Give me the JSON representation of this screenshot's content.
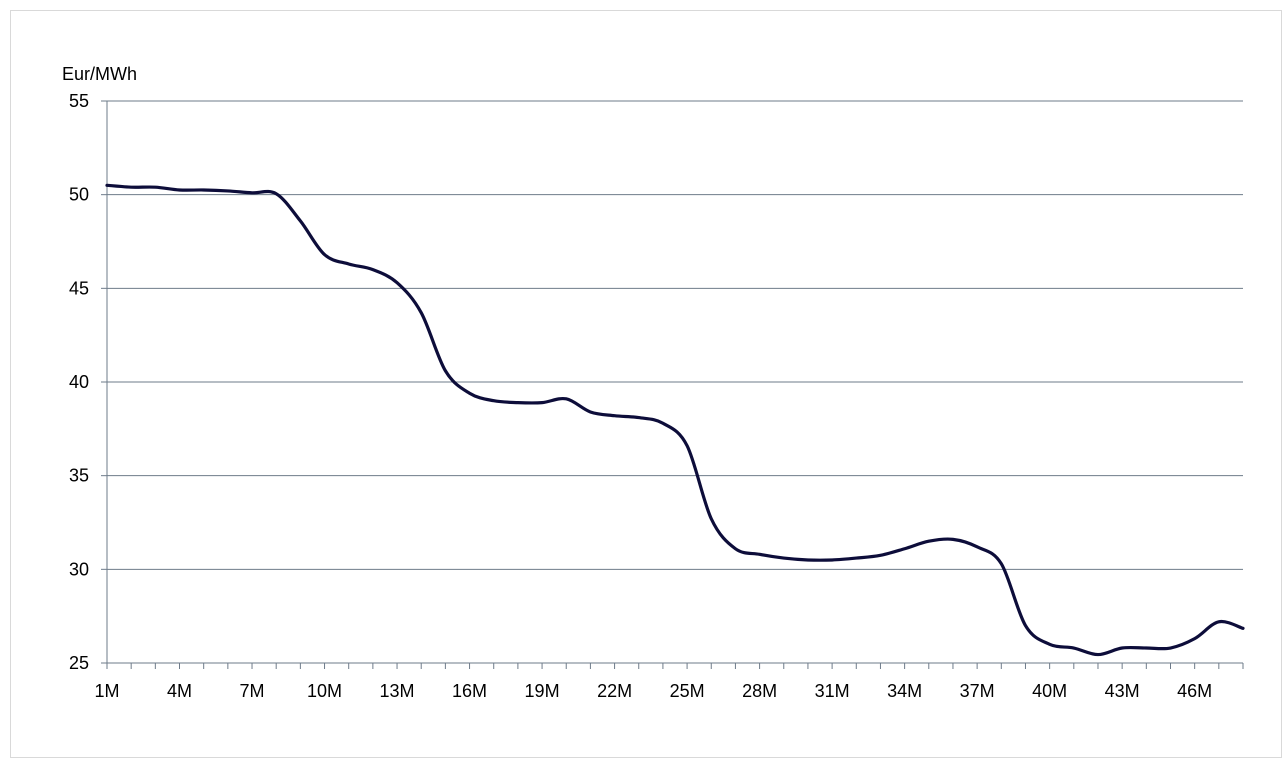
{
  "chart_data": {
    "type": "line",
    "title": "",
    "xlabel": "",
    "ylabel": "Eur/MWh",
    "ylim": [
      25,
      55
    ],
    "yticks": [
      25,
      30,
      35,
      40,
      45,
      50,
      55
    ],
    "xlim": [
      1,
      48
    ],
    "xticks": [
      {
        "x": 1,
        "label": "1M"
      },
      {
        "x": 4,
        "label": "4M"
      },
      {
        "x": 7,
        "label": "7M"
      },
      {
        "x": 10,
        "label": "10M"
      },
      {
        "x": 13,
        "label": "13M"
      },
      {
        "x": 16,
        "label": "16M"
      },
      {
        "x": 19,
        "label": "19M"
      },
      {
        "x": 22,
        "label": "22M"
      },
      {
        "x": 25,
        "label": "25M"
      },
      {
        "x": 28,
        "label": "28M"
      },
      {
        "x": 31,
        "label": "31M"
      },
      {
        "x": 34,
        "label": "34M"
      },
      {
        "x": 37,
        "label": "37M"
      },
      {
        "x": 40,
        "label": "40M"
      },
      {
        "x": 43,
        "label": "43M"
      },
      {
        "x": 46,
        "label": "46M"
      }
    ],
    "grid": "horizontal",
    "legend": "none",
    "series": [
      {
        "color": "#0d0d3a",
        "x": [
          1,
          2,
          3,
          4,
          5,
          6,
          7,
          8,
          9,
          10,
          11,
          12,
          13,
          14,
          15,
          16,
          17,
          18,
          19,
          20,
          21,
          22,
          23,
          24,
          25,
          26,
          27,
          28,
          29,
          30,
          31,
          32,
          33,
          34,
          35,
          36,
          37,
          38,
          39,
          40,
          41,
          42,
          43,
          44,
          45,
          46,
          47,
          48
        ],
        "values": [
          50.5,
          50.4,
          50.4,
          50.25,
          50.25,
          50.2,
          50.1,
          50.05,
          48.6,
          46.8,
          46.3,
          46.0,
          45.3,
          43.7,
          40.6,
          39.4,
          39.0,
          38.9,
          38.9,
          39.1,
          38.4,
          38.2,
          38.1,
          37.8,
          36.6,
          32.7,
          31.1,
          30.8,
          30.6,
          30.5,
          30.5,
          30.6,
          30.75,
          31.1,
          31.5,
          31.6,
          31.2,
          30.3,
          27.0,
          26.0,
          25.8,
          25.45,
          25.8,
          25.8,
          25.8,
          26.3,
          27.2,
          26.85
        ]
      }
    ]
  },
  "colors": {
    "grid": "#6e7b8a",
    "axis": "#6e7b8a",
    "frame": "#d9d9d9"
  }
}
